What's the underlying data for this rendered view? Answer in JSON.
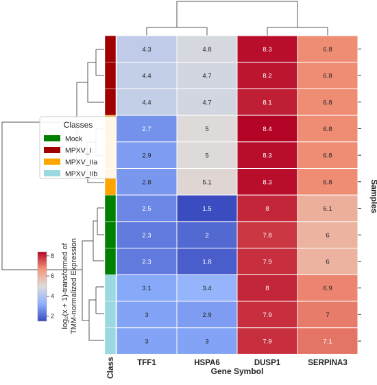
{
  "chart_data": {
    "type": "heatmap",
    "columns": [
      "TFF1",
      "HSPA6",
      "DUSP1",
      "SERPINA3"
    ],
    "rows": [
      {
        "class": "MPXV_I",
        "values": [
          4.3,
          4.8,
          8.3,
          6.8
        ]
      },
      {
        "class": "MPXV_I",
        "values": [
          4.4,
          4.7,
          8.2,
          6.8
        ]
      },
      {
        "class": "MPXV_I",
        "values": [
          4.4,
          4.7,
          8.1,
          6.8
        ]
      },
      {
        "class": "MPXV_IIa",
        "values": [
          2.7,
          5,
          8.4,
          6.8
        ]
      },
      {
        "class": "MPXV_IIa",
        "values": [
          2.9,
          5,
          8.3,
          6.8
        ]
      },
      {
        "class": "MPXV_IIa",
        "values": [
          2.8,
          5.1,
          8.3,
          6.8
        ]
      },
      {
        "class": "Mock",
        "values": [
          2.5,
          1.5,
          8,
          6.1
        ]
      },
      {
        "class": "Mock",
        "values": [
          2.3,
          2,
          7.8,
          6
        ]
      },
      {
        "class": "Mock",
        "values": [
          2.3,
          1.8,
          7.9,
          6
        ]
      },
      {
        "class": "MPXV_IIb",
        "values": [
          3.1,
          3.4,
          8,
          6.9
        ]
      },
      {
        "class": "MPXV_IIb",
        "values": [
          3,
          2.9,
          7.9,
          7
        ]
      },
      {
        "class": "MPXV_IIb",
        "values": [
          3,
          3,
          7.9,
          7.1
        ]
      }
    ],
    "xlabel": "Gene Symbol",
    "ylabel": "Samples",
    "class_axis_label": "Class",
    "legend": {
      "title": "Classes",
      "position": "left",
      "entries": [
        {
          "name": "Mock",
          "color": "#008000"
        },
        {
          "name": "MPXV_I",
          "color": "#a00000"
        },
        {
          "name": "MPXV_IIa",
          "color": "#ffa500"
        },
        {
          "name": "MPXV_IIb",
          "color": "#9ad8e2"
        }
      ]
    },
    "colorbar": {
      "label_line1": "log₂(x + 1)-transformed of",
      "label_line2": "TMM-normalized Expression",
      "range": [
        1.5,
        8.4
      ],
      "ticks": [
        2,
        4,
        6,
        8
      ],
      "colormap": "coolwarm"
    },
    "dendrograms": {
      "row": true,
      "column": true
    }
  }
}
